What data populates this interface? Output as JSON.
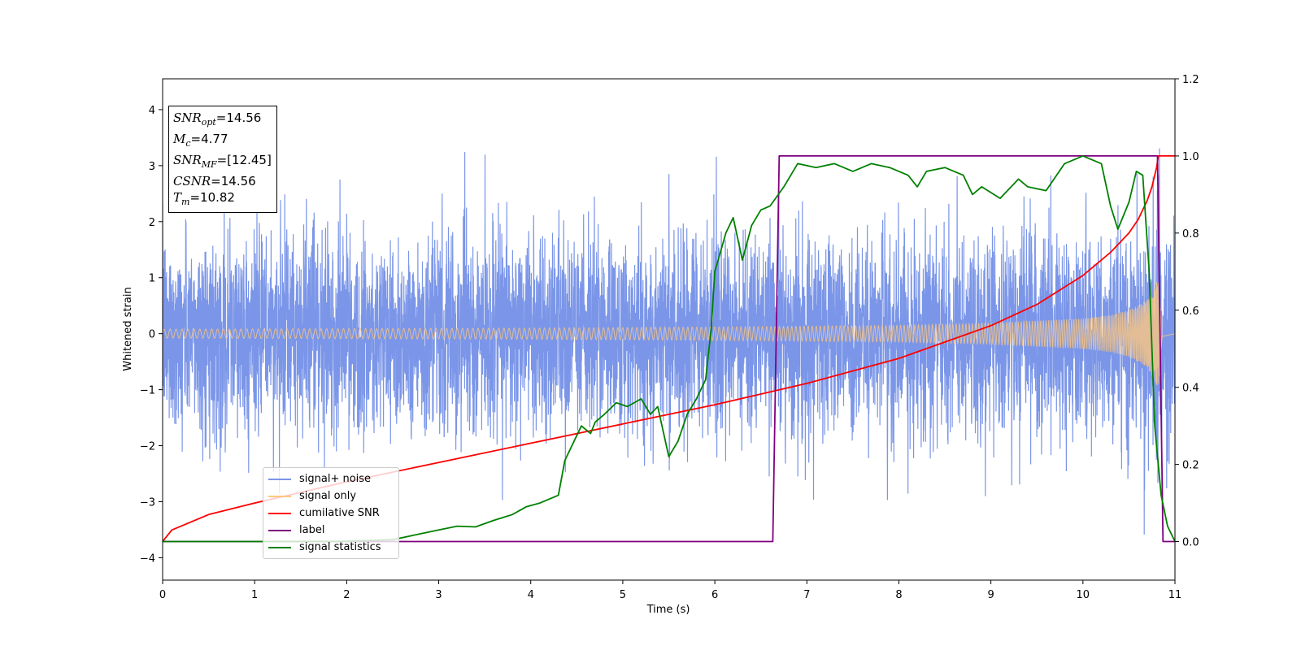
{
  "chart_data": {
    "type": "line",
    "xlabel": "Time (s)",
    "ylabel": "Whitened strain",
    "xlim": [
      0,
      11
    ],
    "ylim": [
      -4.4,
      4.55
    ],
    "y2lim": [
      -0.1,
      1.2
    ],
    "xticks": [
      0,
      1,
      2,
      3,
      4,
      5,
      6,
      7,
      8,
      9,
      10,
      11
    ],
    "yticks": [
      -4,
      -3,
      -2,
      -1,
      0,
      1,
      2,
      3,
      4
    ],
    "y2ticks": [
      "0.0",
      "0.2",
      "0.4",
      "0.6",
      "0.8",
      "1.0",
      "1.2"
    ],
    "grid": false,
    "legend_position": "lower-left",
    "annotations": {
      "snr_opt": "=14.56",
      "mc": "=4.77",
      "snr_mf": "=[12.45]",
      "csnr": "=14.56",
      "tm": "=10.82"
    },
    "series": [
      {
        "name": "signal+ noise",
        "color": "#7b96e8",
        "axis": "left",
        "description_values": "noisy whitened strain, roughly within [-3.8, 4.2]"
      },
      {
        "name": "signal only",
        "color": "#fdc780",
        "axis": "left",
        "envelope": {
          "x": [
            0,
            2,
            4,
            6,
            8,
            9,
            10,
            10.3,
            10.5,
            10.65,
            10.75,
            10.82,
            10.86,
            11
          ],
          "amp": [
            0.08,
            0.09,
            0.1,
            0.12,
            0.15,
            0.19,
            0.27,
            0.33,
            0.42,
            0.55,
            0.75,
            0.98,
            0.05,
            0.0
          ]
        }
      },
      {
        "name": "cumilative SNR",
        "color": "#ff0000",
        "axis": "right",
        "x": [
          0,
          0.1,
          0.5,
          1,
          2,
          3,
          4,
          5,
          6,
          7,
          8,
          9,
          9.5,
          10,
          10.3,
          10.5,
          10.6,
          10.7,
          10.75,
          10.8,
          10.82,
          11
        ],
        "y": [
          0.0,
          0.03,
          0.07,
          0.1,
          0.155,
          0.205,
          0.255,
          0.305,
          0.355,
          0.41,
          0.475,
          0.56,
          0.615,
          0.69,
          0.75,
          0.8,
          0.835,
          0.885,
          0.92,
          0.97,
          1.0,
          1.0
        ]
      },
      {
        "name": "label",
        "color": "#800080",
        "axis": "right",
        "x": [
          0,
          6.63,
          6.7,
          10.81,
          10.87,
          11
        ],
        "y": [
          0,
          0,
          1,
          1,
          0,
          0
        ]
      },
      {
        "name": "signal statistics",
        "color": "#008000",
        "axis": "right",
        "x": [
          0,
          1,
          2,
          2.5,
          2.8,
          3.0,
          3.2,
          3.4,
          3.6,
          3.8,
          3.95,
          4.1,
          4.3,
          4.37,
          4.55,
          4.65,
          4.7,
          4.8,
          4.93,
          5.05,
          5.2,
          5.3,
          5.38,
          5.5,
          5.6,
          5.7,
          5.8,
          5.9,
          5.96,
          6.0,
          6.12,
          6.2,
          6.3,
          6.4,
          6.5,
          6.6,
          6.75,
          6.9,
          7.1,
          7.3,
          7.5,
          7.7,
          7.9,
          8.1,
          8.2,
          8.3,
          8.5,
          8.7,
          8.8,
          8.9,
          9.1,
          9.3,
          9.4,
          9.6,
          9.8,
          10.0,
          10.2,
          10.3,
          10.38,
          10.5,
          10.58,
          10.65,
          10.72,
          10.78,
          10.85,
          10.92,
          11
        ],
        "y": [
          0.0,
          0.0,
          0.001,
          0.005,
          0.02,
          0.03,
          0.04,
          0.038,
          0.055,
          0.07,
          0.09,
          0.1,
          0.12,
          0.21,
          0.3,
          0.28,
          0.31,
          0.33,
          0.36,
          0.35,
          0.37,
          0.33,
          0.35,
          0.22,
          0.26,
          0.33,
          0.37,
          0.42,
          0.55,
          0.7,
          0.8,
          0.84,
          0.73,
          0.82,
          0.86,
          0.87,
          0.92,
          0.98,
          0.97,
          0.98,
          0.96,
          0.98,
          0.97,
          0.95,
          0.92,
          0.96,
          0.97,
          0.95,
          0.9,
          0.92,
          0.89,
          0.94,
          0.92,
          0.91,
          0.98,
          1.0,
          0.98,
          0.87,
          0.81,
          0.88,
          0.96,
          0.95,
          0.7,
          0.3,
          0.12,
          0.04,
          0.0
        ]
      }
    ]
  }
}
